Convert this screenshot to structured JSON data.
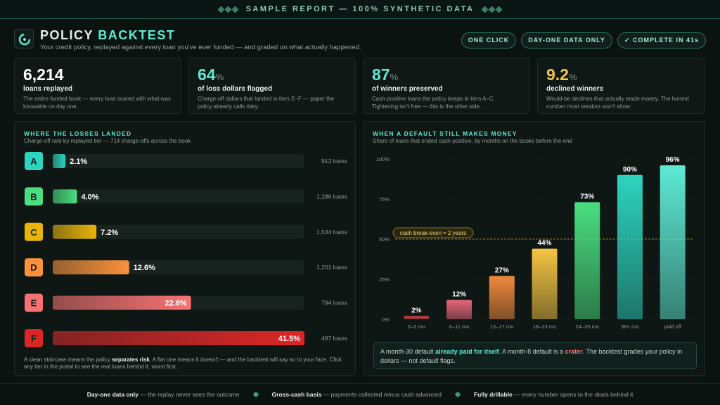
{
  "banner": "SAMPLE REPORT — 100% SYNTHETIC DATA",
  "header": {
    "title": [
      "POLICY",
      "BACKTEST"
    ],
    "subtitle": "Your credit policy, replayed against every loan you've ever funded — and graded on what actually happened.",
    "badges": [
      "ONE CLICK",
      "DAY-ONE DATA ONLY",
      "✓ COMPLETE IN 41s"
    ]
  },
  "kpis": [
    {
      "value": "6,214",
      "unit": "",
      "label": "loans replayed",
      "desc": "The entire funded book — every loan scored with what was knowable on day one.",
      "color": "#ffffff"
    },
    {
      "value": "64",
      "unit": "%",
      "label": "of loss dollars flagged",
      "desc": "Charge-off dollars that landed in tiers E–F — paper the policy already calls risky.",
      "color": "#5eead4"
    },
    {
      "value": "87",
      "unit": "%",
      "label": "of winners preserved",
      "desc": "Cash-positive loans the policy keeps in tiers A–C. Tightening isn't free — this is the other side.",
      "color": "#5eead4"
    },
    {
      "value": "9.2",
      "unit": "%",
      "label": "declined winners",
      "desc": "Would-be declines that actually made money. The honest number most vendors won't show.",
      "color": "#f5c542"
    }
  ],
  "chart_data": [
    {
      "type": "hbar",
      "title": "WHERE THE LOSSES LANDED",
      "subtitle": "Charge-off rate by replayed tier — 714 charge-offs across the book",
      "categories": [
        "A",
        "B",
        "C",
        "D",
        "E",
        "F"
      ],
      "values": [
        2.1,
        4.0,
        7.2,
        12.6,
        22.8,
        41.5
      ],
      "value_labels": [
        "2.1%",
        "4.0%",
        "7.2%",
        "12.6%",
        "22.8%",
        "41.5%"
      ],
      "loan_labels": [
        "912 loans",
        "1,286 loans",
        "1,534 loans",
        "1,201 loans",
        "794 loans",
        "487 loans"
      ],
      "colors": [
        "#2dd4bf",
        "#4ade80",
        "#eab308",
        "#fb923c",
        "#f87171",
        "#dc2626"
      ],
      "note": [
        "A clean staircase means the policy ",
        "separates risk",
        ". A flat one means it doesn't — and the backtest will say so to your face. Click any tier in the portal to see the real loans behind it, worst first."
      ]
    },
    {
      "type": "bar",
      "title": "WHEN A DEFAULT STILL MAKES MONEY",
      "subtitle": "Share of loans that ended cash-positive, by months on the books before the end",
      "categories": [
        "0–5 mo",
        "6–11 mo",
        "12–17 mo",
        "18–23 mo",
        "24–35 mo",
        "36+ mo",
        "paid off"
      ],
      "values": [
        2,
        12,
        27,
        44,
        73,
        90,
        96
      ],
      "value_labels": [
        "2%",
        "12%",
        "27%",
        "44%",
        "73%",
        "90%",
        "96%"
      ],
      "colors": [
        "#e0454f",
        "#e8667a",
        "#f08a3c",
        "#f5c542",
        "#4ade80",
        "#2dd4bf",
        "#5eead4"
      ],
      "ylim": [
        0,
        100
      ],
      "yticks": [
        {
          "value": 0,
          "label": "0%"
        },
        {
          "value": 25,
          "label": "25%"
        },
        {
          "value": 50,
          "label": "50%"
        },
        {
          "value": 75,
          "label": "75%"
        },
        {
          "value": 100,
          "label": "100%"
        }
      ],
      "grid": true,
      "reference": {
        "value": 50,
        "label": "cash break-even ≈ 2 years"
      },
      "callout": [
        "A month-30 default ",
        "already paid for itself",
        ". A month-8 default is a ",
        "crater",
        ". The backtest grades your policy in dollars — not default flags."
      ]
    }
  ],
  "footer": [
    [
      "Day-one data only",
      " — the replay never sees the outcome"
    ],
    [
      "Gross-cash basis",
      " — payments collected minus cash advanced"
    ],
    [
      "Fully drillable",
      " — every number opens to the deals behind it"
    ]
  ]
}
